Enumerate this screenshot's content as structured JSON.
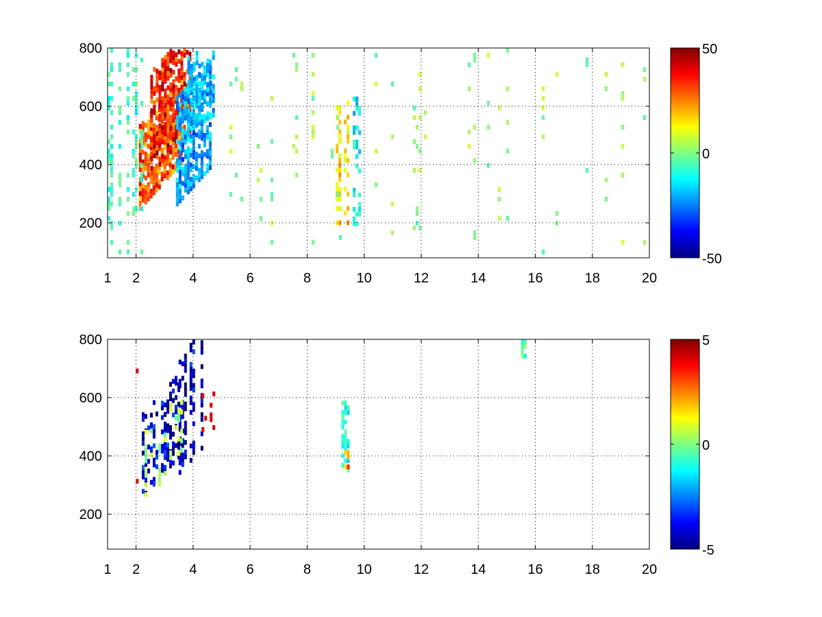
{
  "figure": {
    "background": "#ffffff",
    "colormap": "jet"
  },
  "chart_data": [
    {
      "type": "heatmap",
      "title": "",
      "xlabel": "",
      "ylabel": "",
      "xlim": [
        1,
        20
      ],
      "ylim": [
        80,
        800
      ],
      "x_ticks": [
        1,
        2,
        4,
        6,
        8,
        10,
        12,
        14,
        16,
        18,
        20
      ],
      "y_ticks": [
        200,
        400,
        600,
        800
      ],
      "grid": true,
      "colorbar": {
        "min": -50,
        "max": 50,
        "ticks": [
          50,
          0,
          -50
        ]
      },
      "features": [
        {
          "x": [
            2.1,
            3.6
          ],
          "y": [
            330,
            620
          ],
          "value": 28,
          "density": 0.75,
          "slope": 0.9
        },
        {
          "x": [
            2.5,
            3.9
          ],
          "y": [
            450,
            800
          ],
          "value": 35,
          "density": 0.7,
          "slope": 0.9
        },
        {
          "x": [
            3.4,
            4.6
          ],
          "y": [
            330,
            700
          ],
          "value": -22,
          "density": 0.75,
          "slope": 0.9
        },
        {
          "x": [
            3.8,
            4.7
          ],
          "y": [
            550,
            800
          ],
          "value": -18,
          "density": 0.6,
          "slope": 0.5
        },
        {
          "x": [
            1.0,
            2.2
          ],
          "y": [
            80,
            800
          ],
          "value": -6,
          "density": 0.35,
          "slope": 0
        },
        {
          "x": [
            9.0,
            9.4
          ],
          "y": [
            200,
            620
          ],
          "value": 15,
          "density": 0.55,
          "slope": 0
        },
        {
          "x": [
            9.6,
            9.8
          ],
          "y": [
            200,
            650
          ],
          "value": -12,
          "density": 0.4,
          "slope": 0
        },
        {
          "x": [
            4.7,
            20.0
          ],
          "y": [
            80,
            800
          ],
          "value": 2,
          "density": 0.1,
          "slope": 0
        }
      ]
    },
    {
      "type": "heatmap",
      "title": "",
      "xlabel": "",
      "ylabel": "",
      "xlim": [
        1,
        20
      ],
      "ylim": [
        80,
        800
      ],
      "x_ticks": [
        1,
        2,
        4,
        6,
        8,
        10,
        12,
        14,
        16,
        18,
        20
      ],
      "y_ticks": [
        200,
        400,
        600,
        800
      ],
      "grid": true,
      "colorbar": {
        "min": -5,
        "max": 5,
        "ticks": [
          5,
          0,
          -5
        ]
      },
      "features": [
        {
          "x": [
            2.2,
            3.5
          ],
          "y": [
            330,
            620
          ],
          "value": -4.2,
          "density": 0.45,
          "slope": 0.9
        },
        {
          "x": [
            3.3,
            4.3
          ],
          "y": [
            380,
            780
          ],
          "value": -4.5,
          "density": 0.5,
          "slope": 0.9
        },
        {
          "x": [
            2.3,
            3.6
          ],
          "y": [
            320,
            560
          ],
          "value": 0.5,
          "density": 0.3,
          "slope": 0.9
        },
        {
          "x": [
            4.2,
            4.7
          ],
          "y": [
            480,
            640
          ],
          "value": 3.8,
          "density": 0.35,
          "slope": 0.5
        },
        {
          "x": [
            1.8,
            2.4
          ],
          "y": [
            180,
            700
          ],
          "value": 4.5,
          "density": 0.08,
          "slope": 0
        },
        {
          "x": [
            9.2,
            9.4
          ],
          "y": [
            350,
            590
          ],
          "value": -1.0,
          "density": 0.5,
          "slope": 0
        },
        {
          "x": [
            9.3,
            9.4
          ],
          "y": [
            370,
            420
          ],
          "value": 2.5,
          "density": 0.5,
          "slope": 0
        },
        {
          "x": [
            15.5,
            15.6
          ],
          "y": [
            740,
            800
          ],
          "value": -0.5,
          "density": 0.6,
          "slope": 0
        }
      ]
    }
  ]
}
